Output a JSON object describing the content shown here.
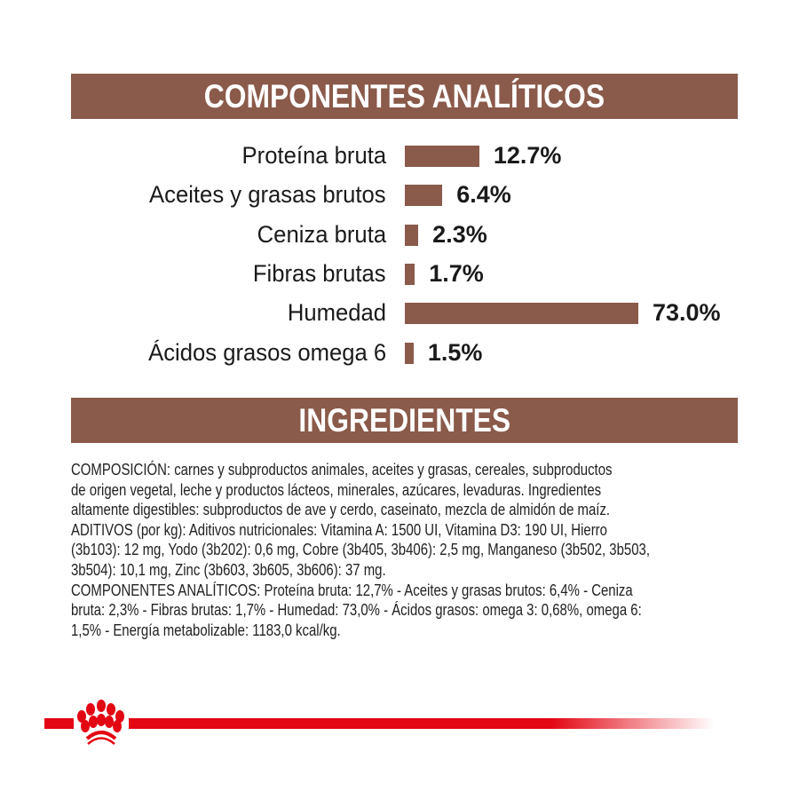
{
  "analytics": {
    "title": "COMPONENTES ANALÍTICOS",
    "bar_color": "#8a5a4a",
    "items": [
      {
        "label": "Proteína bruta",
        "value": 12.7,
        "display": "12.7%"
      },
      {
        "label": "Aceites y grasas brutos",
        "value": 6.4,
        "display": "6.4%"
      },
      {
        "label": "Ceniza bruta",
        "value": 2.3,
        "display": "2.3%"
      },
      {
        "label": "Fibras brutas",
        "value": 1.7,
        "display": "1.7%"
      },
      {
        "label": "Humedad",
        "value": 73.0,
        "display": "73.0%"
      },
      {
        "label": "Ácidos grasos omega 6",
        "value": 1.5,
        "display": "1.5%"
      }
    ]
  },
  "ingredients": {
    "title": "INGREDIENTES",
    "lines": [
      "COMPOSICIÓN: carnes y subproductos animales, aceites y grasas, cereales, subproductos",
      "de origen vegetal, leche y productos lácteos, minerales, azúcares, levaduras. Ingredientes",
      "altamente digestibles: subproductos de ave y cerdo, caseinato, mezcla de almidón de maíz.",
      "ADITIVOS (por kg): Aditivos nutricionales: Vitamina A: 1500 UI, Vitamina D3: 190 UI, Hierro",
      "(3b103): 12 mg, Yodo (3b202): 0,6 mg, Cobre (3b405, 3b406): 2,5 mg, Manganeso (3b502, 3b503,",
      "3b504): 10,1 mg, Zinc (3b603, 3b605, 3b606): 37 mg.",
      "COMPONENTES ANALÍTICOS: Proteína bruta: 12,7% - Aceites y grasas brutos: 6,4% - Ceniza",
      "bruta: 2,3% - Fibras brutas: 1,7% - Humedad: 73,0% - Ácidos grasos: omega 3: 0,68%, omega 6:",
      "1,5% - Energía metabolizable: 1183,0 kcal/kg."
    ]
  },
  "footer": {
    "logo": "royal-canin-crown-logo",
    "brand_color": "#e30613"
  }
}
